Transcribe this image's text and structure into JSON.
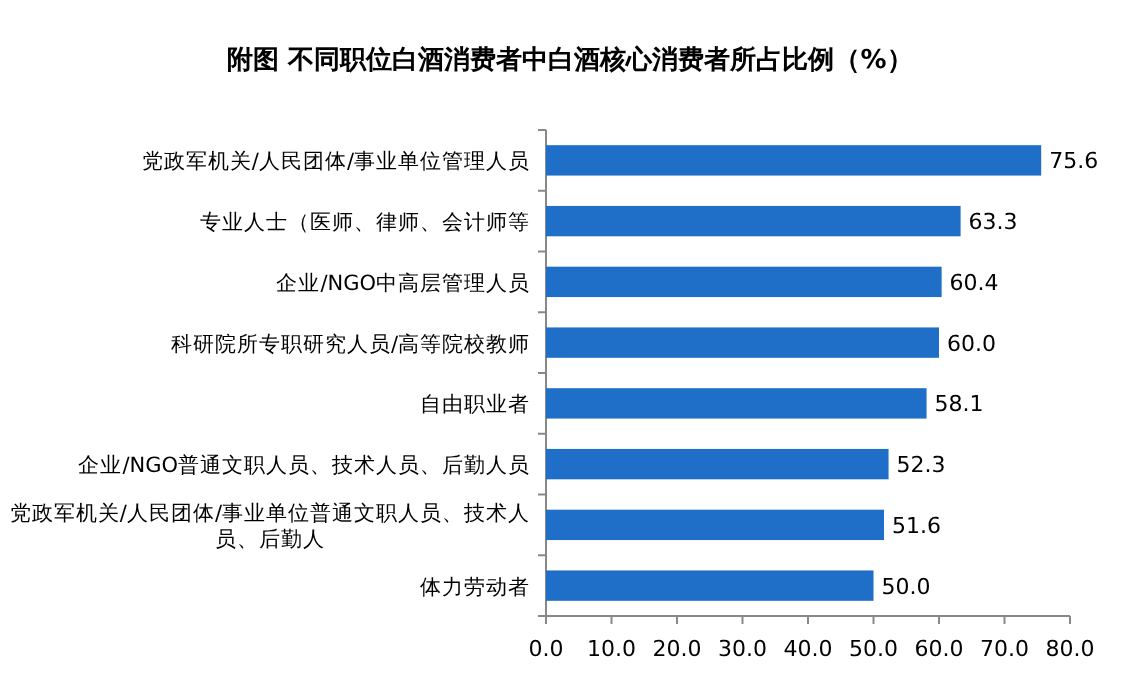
{
  "chart_data": {
    "type": "bar",
    "orientation": "horizontal",
    "title": "附图 不同职位白酒消费者中白酒核心消费者所占比例（%）",
    "categories": [
      "党政军机关/人民团体/事业单位管理人员",
      "专业人士（医师、律师、会计师等",
      "企业/NGO中高层管理人员",
      "科研院所专职研究人员/高等院校教师",
      "自由职业者",
      "企业/NGO普通文职人员、技术人员、后勤人员",
      "党政军机关/人民团体/事业单位普通文职人员、技术人员、后勤人",
      "体力劳动者"
    ],
    "values": [
      75.6,
      63.3,
      60.4,
      60.0,
      58.1,
      52.3,
      51.6,
      50.0
    ],
    "value_labels": [
      "75.6",
      "63.3",
      "60.4",
      "60.0",
      "58.1",
      "52.3",
      "51.6",
      "50.0"
    ],
    "color": "#1f6fc8",
    "xlim": [
      0,
      80
    ],
    "xticks": [
      {
        "value": 0,
        "label": "0.0"
      },
      {
        "value": 10,
        "label": "10.0"
      },
      {
        "value": 20,
        "label": "20.0"
      },
      {
        "value": 30,
        "label": "30.0"
      },
      {
        "value": 40,
        "label": "40.0"
      },
      {
        "value": 50,
        "label": "50.0"
      },
      {
        "value": 60,
        "label": "60.0"
      },
      {
        "value": 70,
        "label": "70.0"
      },
      {
        "value": 80,
        "label": "80.0"
      }
    ],
    "grid": false
  }
}
